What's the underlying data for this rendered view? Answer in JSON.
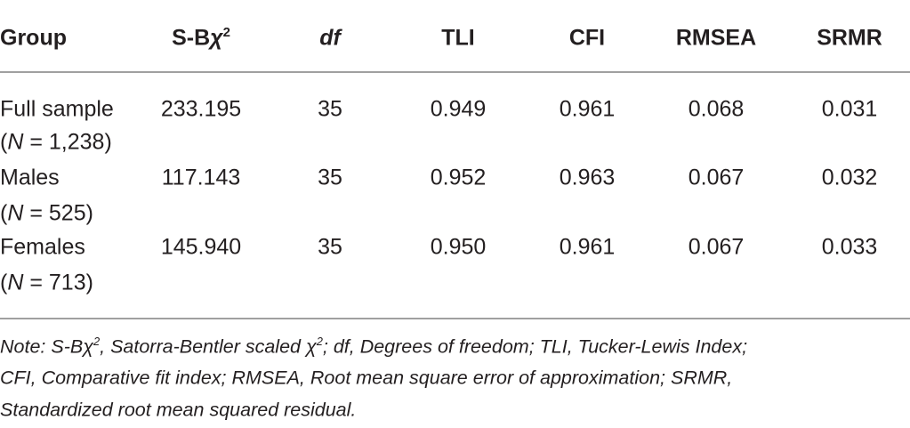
{
  "table": {
    "header": [
      "Group",
      [
        "S-B",
        "χ",
        "2"
      ],
      "df",
      "TLI",
      "CFI",
      "RMSEA",
      "SRMR"
    ],
    "rows": [
      {
        "group": [
          "Full sample",
          "(",
          "N",
          " = 1,238)"
        ],
        "values": [
          "233.195",
          "35",
          "0.949",
          "0.961",
          "0.068",
          "0.031"
        ]
      },
      {
        "group": [
          "Males",
          "(",
          "N",
          " = 525)"
        ],
        "values": [
          "117.143",
          "35",
          "0.952",
          "0.963",
          "0.067",
          "0.032"
        ]
      },
      {
        "group": [
          "Females",
          "(",
          "N",
          " = 713)"
        ],
        "values": [
          "145.940",
          "35",
          "0.950",
          "0.961",
          "0.067",
          "0.033"
        ]
      }
    ]
  },
  "note": [
    "Note: S-Bχ",
    "2",
    ", Satorra-Bentler scaled χ",
    "2",
    "; df, Degrees of freedom; TLI, Tucker-Lewis Index;",
    "CFI, Comparative fit index; RMSEA, Root mean square error of approximation; SRMR,",
    "Standardized root mean squared residual."
  ]
}
